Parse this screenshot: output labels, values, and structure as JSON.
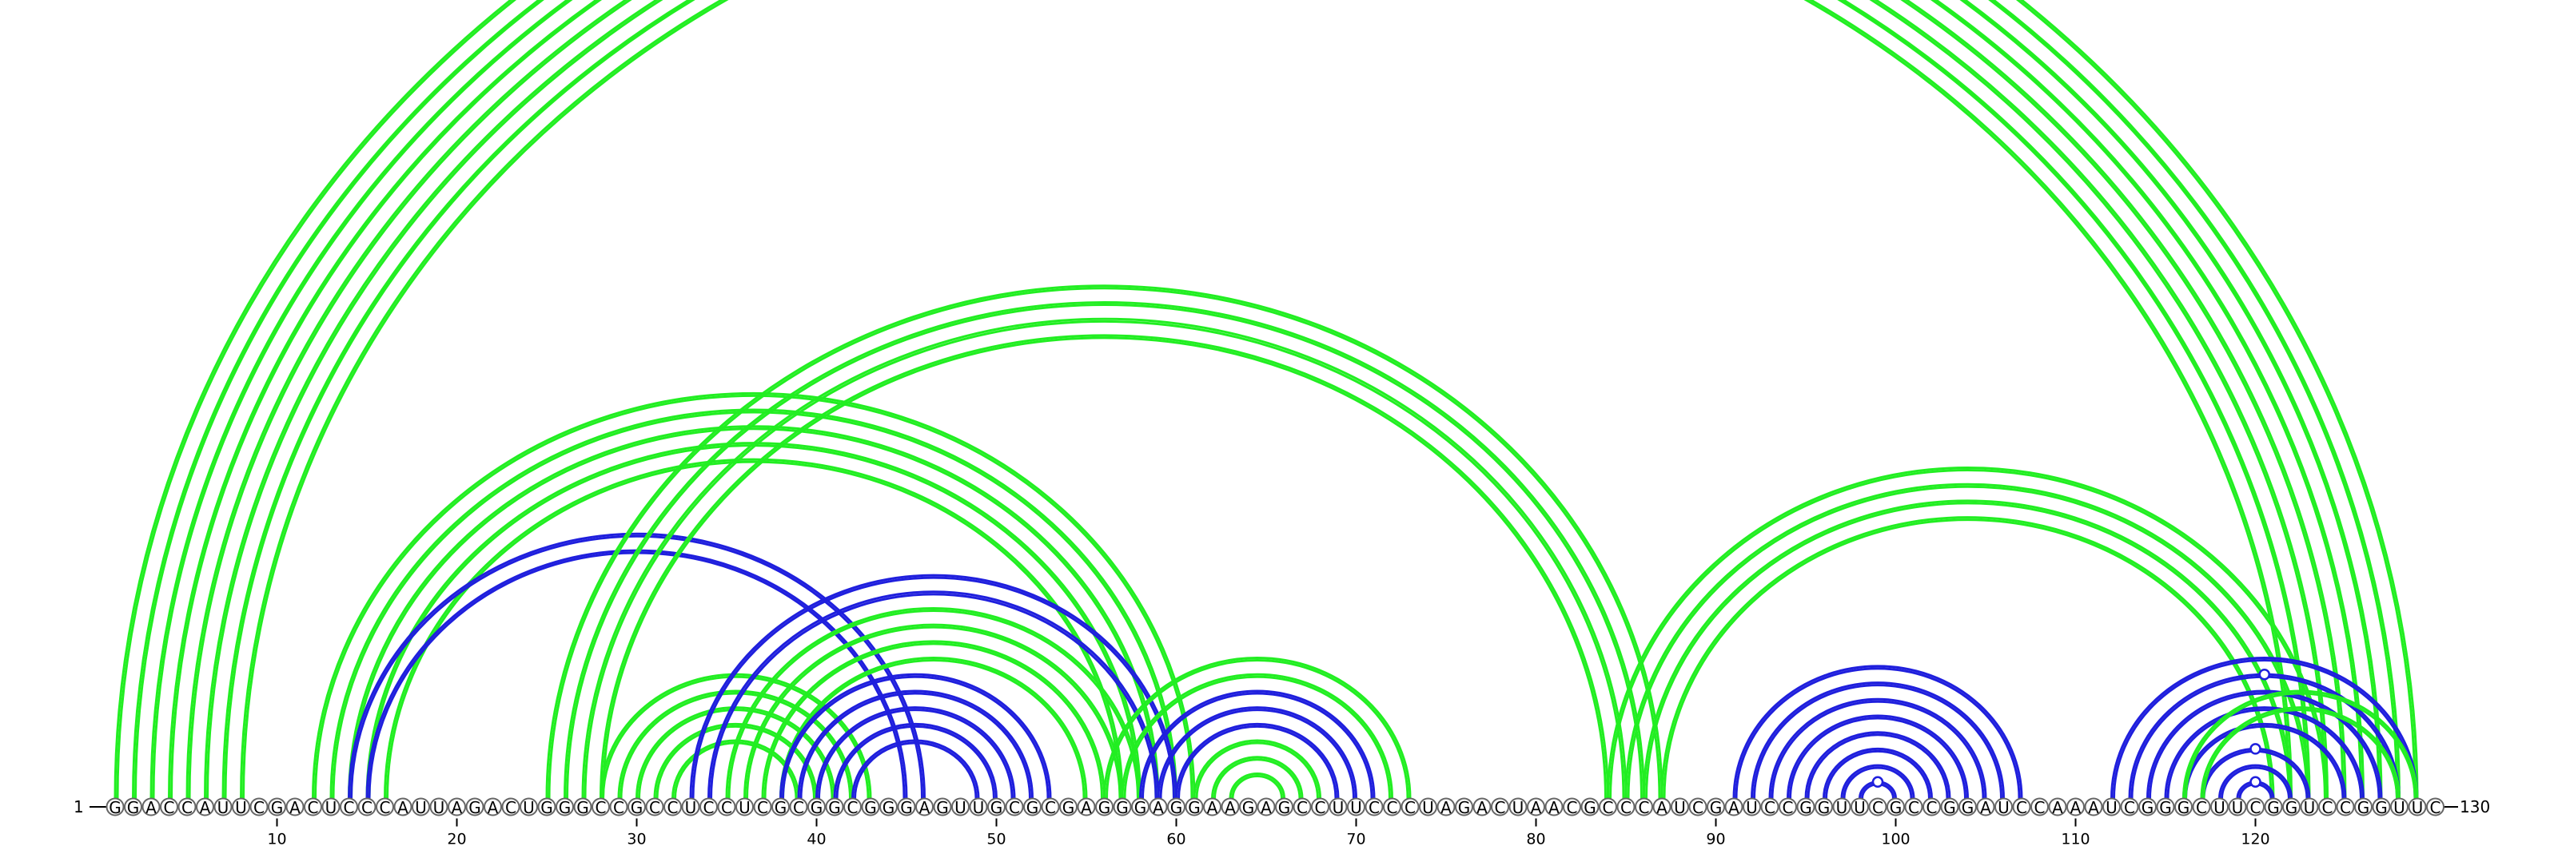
{
  "diagram": {
    "sequence": "GGACCAUUCGACUCCCAUUAGACUGGGCCGCCUCCUCGCGGCGGGAGUUGCGCGAGGGAGGAAGAGCCUUCCCUAGACUAACGCCCAUCGAUCCGGUUCGCCGGAUCCAAAUCGGGCUUCGGUCCGGUUC",
    "start_label": "1",
    "end_label": "130",
    "tick_labels": [
      "10",
      "20",
      "30",
      "40",
      "50",
      "60",
      "70",
      "80",
      "90",
      "100",
      "110",
      "120"
    ],
    "colors": {
      "green": "#22ee22",
      "blue": "#1f1fdd"
    },
    "arcs": [
      {
        "i": 1,
        "j": 129,
        "color": "green"
      },
      {
        "i": 2,
        "j": 128,
        "color": "green"
      },
      {
        "i": 3,
        "j": 127,
        "color": "green"
      },
      {
        "i": 4,
        "j": 126,
        "color": "green"
      },
      {
        "i": 5,
        "j": 125,
        "color": "green"
      },
      {
        "i": 6,
        "j": 124,
        "color": "green"
      },
      {
        "i": 7,
        "j": 123,
        "color": "green"
      },
      {
        "i": 8,
        "j": 122,
        "color": "green"
      },
      {
        "i": 12,
        "j": 61,
        "color": "green"
      },
      {
        "i": 13,
        "j": 60,
        "color": "green"
      },
      {
        "i": 14,
        "j": 59,
        "color": "green"
      },
      {
        "i": 15,
        "j": 58,
        "color": "green"
      },
      {
        "i": 16,
        "j": 57,
        "color": "green"
      },
      {
        "i": 14,
        "j": 46,
        "color": "blue"
      },
      {
        "i": 15,
        "j": 45,
        "color": "blue"
      },
      {
        "i": 25,
        "j": 87,
        "color": "green"
      },
      {
        "i": 26,
        "j": 86,
        "color": "green"
      },
      {
        "i": 27,
        "j": 85,
        "color": "green"
      },
      {
        "i": 28,
        "j": 84,
        "color": "green"
      },
      {
        "i": 28,
        "j": 43,
        "color": "green"
      },
      {
        "i": 29,
        "j": 42,
        "color": "green"
      },
      {
        "i": 30,
        "j": 41,
        "color": "green"
      },
      {
        "i": 31,
        "j": 40,
        "color": "green"
      },
      {
        "i": 32,
        "j": 39,
        "color": "green"
      },
      {
        "i": 33,
        "j": 60,
        "color": "blue"
      },
      {
        "i": 34,
        "j": 59,
        "color": "blue"
      },
      {
        "i": 35,
        "j": 58,
        "color": "green"
      },
      {
        "i": 36,
        "j": 57,
        "color": "green"
      },
      {
        "i": 37,
        "j": 56,
        "color": "green"
      },
      {
        "i": 38,
        "j": 55,
        "color": "green"
      },
      {
        "i": 38,
        "j": 53,
        "color": "blue"
      },
      {
        "i": 39,
        "j": 52,
        "color": "blue"
      },
      {
        "i": 40,
        "j": 51,
        "color": "blue"
      },
      {
        "i": 41,
        "j": 50,
        "color": "blue"
      },
      {
        "i": 42,
        "j": 49,
        "color": "blue"
      },
      {
        "i": 56,
        "j": 73,
        "color": "green"
      },
      {
        "i": 57,
        "j": 72,
        "color": "green"
      },
      {
        "i": 58,
        "j": 71,
        "color": "blue"
      },
      {
        "i": 59,
        "j": 70,
        "color": "blue"
      },
      {
        "i": 60,
        "j": 69,
        "color": "blue"
      },
      {
        "i": 61,
        "j": 68,
        "color": "green"
      },
      {
        "i": 62,
        "j": 67,
        "color": "green"
      },
      {
        "i": 63,
        "j": 66,
        "color": "green"
      },
      {
        "i": 84,
        "j": 124,
        "color": "green"
      },
      {
        "i": 85,
        "j": 123,
        "color": "green"
      },
      {
        "i": 86,
        "j": 122,
        "color": "green"
      },
      {
        "i": 87,
        "j": 121,
        "color": "green"
      },
      {
        "i": 91,
        "j": 107,
        "color": "blue"
      },
      {
        "i": 92,
        "j": 106,
        "color": "blue"
      },
      {
        "i": 93,
        "j": 105,
        "color": "blue"
      },
      {
        "i": 94,
        "j": 104,
        "color": "blue"
      },
      {
        "i": 95,
        "j": 103,
        "color": "blue"
      },
      {
        "i": 96,
        "j": 102,
        "color": "blue"
      },
      {
        "i": 97,
        "j": 101,
        "color": "blue"
      },
      {
        "i": 98,
        "j": 100,
        "color": "blue"
      },
      {
        "i": 112,
        "j": 129,
        "color": "blue"
      },
      {
        "i": 113,
        "j": 128,
        "color": "blue"
      },
      {
        "i": 114,
        "j": 127,
        "color": "blue"
      },
      {
        "i": 115,
        "j": 126,
        "color": "blue"
      },
      {
        "i": 116,
        "j": 125,
        "color": "blue"
      },
      {
        "i": 117,
        "j": 123,
        "color": "blue"
      },
      {
        "i": 118,
        "j": 122,
        "color": "blue"
      },
      {
        "i": 119,
        "j": 121,
        "color": "blue"
      },
      {
        "i": 116,
        "j": 129,
        "color": "green"
      },
      {
        "i": 117,
        "j": 128,
        "color": "green"
      }
    ],
    "apex_markers": [
      {
        "i": 1,
        "j": 129,
        "color": "green"
      },
      {
        "i": 113,
        "j": 128,
        "color": "blue"
      },
      {
        "i": 117,
        "j": 123,
        "color": "blue"
      },
      {
        "i": 119,
        "j": 121,
        "color": "blue"
      },
      {
        "i": 98,
        "j": 100,
        "color": "blue"
      }
    ]
  }
}
